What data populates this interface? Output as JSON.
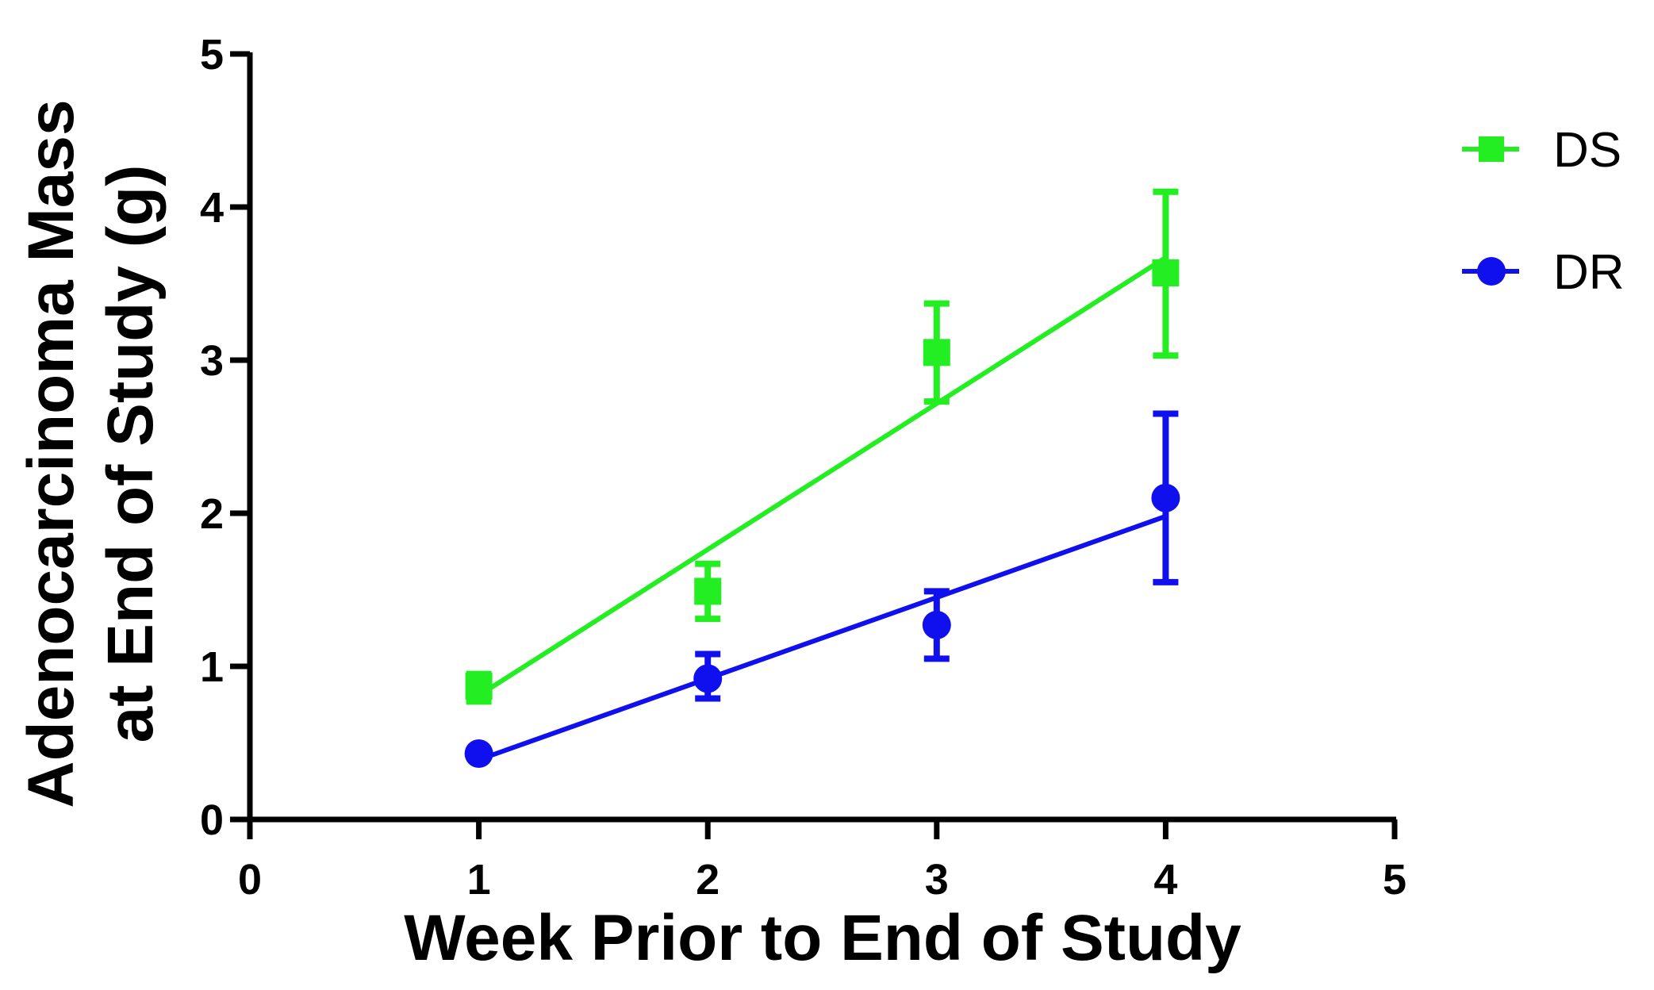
{
  "chart_data": {
    "type": "scatter",
    "xlabel": "Week Prior to End of Study",
    "ylabel_lines": [
      "Adenocarcinoma Mass",
      "at End of Study (g)"
    ],
    "xlim": [
      0,
      5
    ],
    "ylim": [
      0,
      5
    ],
    "xticks": [
      0,
      1,
      2,
      3,
      4,
      5
    ],
    "yticks": [
      0,
      1,
      2,
      3,
      4,
      5
    ],
    "grid": false,
    "legend_position": "right",
    "series": [
      {
        "name": "DS",
        "color": "#22ee22",
        "marker": "square",
        "x": [
          1,
          2,
          3,
          4
        ],
        "y": [
          0.87,
          1.49,
          3.05,
          3.57
        ],
        "err_low": [
          0.77,
          1.31,
          2.73,
          3.03
        ],
        "err_high": [
          0.95,
          1.67,
          3.37,
          4.1
        ],
        "fit_line": {
          "x": [
            1,
            4
          ],
          "y": [
            0.81,
            3.67
          ]
        }
      },
      {
        "name": "DR",
        "color": "#1010ee",
        "marker": "circle",
        "x": [
          1,
          2,
          3,
          4
        ],
        "y": [
          0.43,
          0.92,
          1.27,
          2.1
        ],
        "err_low": [
          0.43,
          0.79,
          1.05,
          1.55
        ],
        "err_high": [
          0.43,
          1.08,
          1.49,
          2.65
        ],
        "fit_line": {
          "x": [
            1,
            4
          ],
          "y": [
            0.39,
            1.98
          ]
        }
      }
    ]
  }
}
